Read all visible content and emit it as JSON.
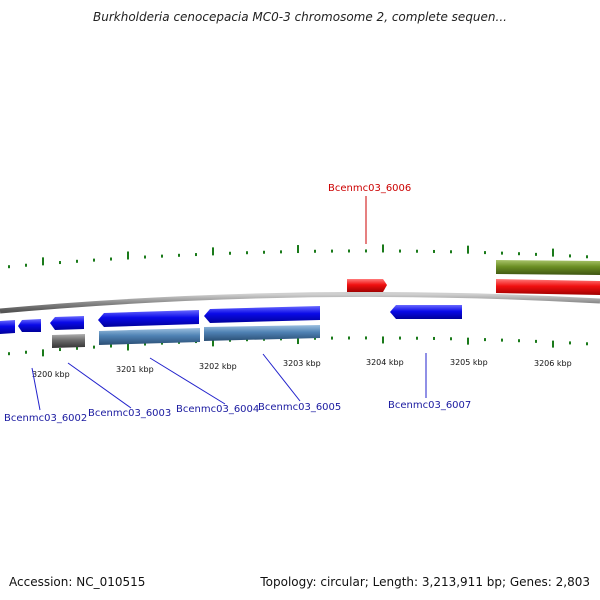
{
  "title": "Burkholderia cenocepacia MC0-3 chromosome 2, complete sequen...",
  "footer": {
    "accession": "Accession: NC_010515",
    "topology": "Topology: circular; Length: 3,213,911 bp; Genes: 2,803"
  },
  "colors": {
    "backbone": "#8a8a8a",
    "gc_ticks": "#1a7a1a",
    "gene_blue": "#0a0ae0",
    "gene_red": "#ee1111",
    "gene_olive": "#6b8e23",
    "gene_steel": "#4f82b4",
    "gene_gray": "#6a6a6a",
    "label_blue": "#1a1aa0",
    "label_red": "#cc0000"
  },
  "ticks": [
    {
      "label": "3200 kbp",
      "kbp": 3200
    },
    {
      "label": "3201 kbp",
      "kbp": 3201
    },
    {
      "label": "3202 kbp",
      "kbp": 3202
    },
    {
      "label": "3203 kbp",
      "kbp": 3203
    },
    {
      "label": "3204 kbp",
      "kbp": 3204
    },
    {
      "label": "3205 kbp",
      "kbp": 3205
    },
    {
      "label": "3206 kbp",
      "kbp": 3206
    }
  ],
  "genes": [
    {
      "id": "Bcenmc03_6002"
    },
    {
      "id": "Bcenmc03_6003"
    },
    {
      "id": "Bcenmc03_6004"
    },
    {
      "id": "Bcenmc03_6005"
    },
    {
      "id": "Bcenmc03_6006"
    },
    {
      "id": "Bcenmc03_6007"
    }
  ]
}
